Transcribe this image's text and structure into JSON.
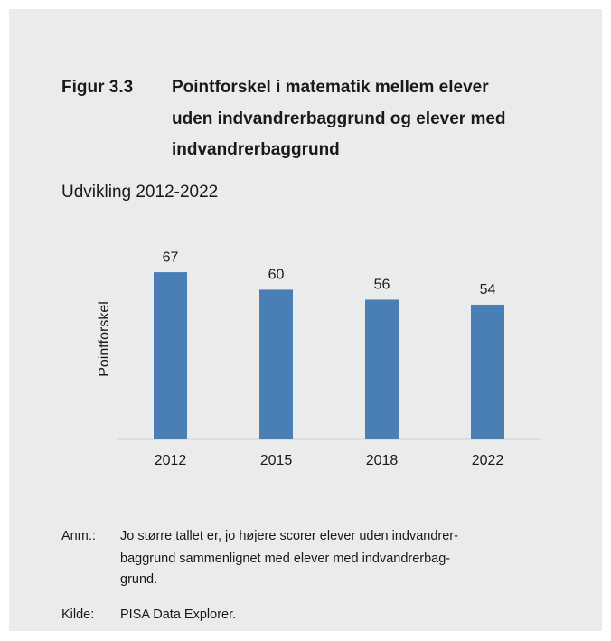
{
  "figure_label": "Figur 3.3",
  "title_lines": [
    "Pointforskel i matematik mellem elever",
    "uden indvandrerbaggrund og elever med",
    "indvandrerbaggrund"
  ],
  "chart_data": {
    "type": "bar",
    "subtitle": "Udvikling 2012-2022",
    "ylabel": "Pointforskel",
    "categories": [
      "2012",
      "2015",
      "2018",
      "2022"
    ],
    "values": [
      67,
      60,
      56,
      54
    ],
    "color": "#4a7fb5"
  },
  "notes": {
    "anm_label": "Anm.:",
    "anm_lines": [
      "Jo større tallet er, jo højere scorer elever uden indvandrer-",
      "baggrund sammenlignet med elever med indvandrerbag-",
      "grund."
    ],
    "kilde_label": "Kilde:",
    "kilde_text": "PISA Data Explorer."
  }
}
